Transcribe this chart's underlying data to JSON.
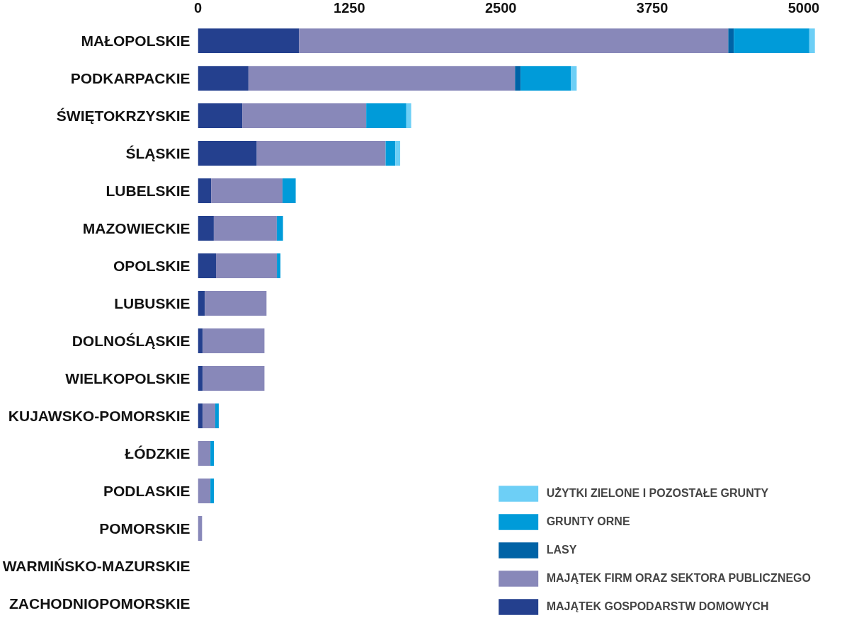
{
  "chart_data": {
    "type": "bar",
    "orientation": "horizontal",
    "stacked": true,
    "categories": [
      "MAŁOPOLSKIE",
      "PODKARPACKIE",
      "ŚWIĘTOKRZYSKIE",
      "ŚLĄSKIE",
      "LUBELSKIE",
      "MAZOWIECKIE",
      "OPOLSKIE",
      "LUBUSKIE",
      "DOLNOŚLĄSKIE",
      "WIELKOPOLSKIE",
      "KUJAWSKO-POMORSKIE",
      "ŁÓDZKIE",
      "PODLASKIE",
      "POMORSKIE",
      "WARMIŃSKO-MAZURSKIE",
      "ZACHODNIOPOMORSKIE"
    ],
    "series": [
      {
        "name": "MAJĄTEK GOSPODARSTW DOMOWYCH",
        "color": "#24408e",
        "values": [
          834,
          417,
          366,
          486,
          109,
          131,
          149,
          57,
          40,
          40,
          40,
          0,
          0,
          0,
          0,
          0
        ]
      },
      {
        "name": "MAJĄTEK FIRM ORAZ SEKTORA PUBLICZNEGO",
        "color": "#8888b9",
        "values": [
          3543,
          2200,
          1023,
          1063,
          589,
          520,
          503,
          509,
          509,
          509,
          103,
          103,
          103,
          34,
          0,
          0
        ]
      },
      {
        "name": "LASY",
        "color": "#0063a6",
        "values": [
          46,
          46,
          0,
          0,
          0,
          0,
          0,
          0,
          0,
          0,
          0,
          0,
          0,
          0,
          0,
          0
        ]
      },
      {
        "name": "GRUNTY ORNE",
        "color": "#009bd9",
        "values": [
          623,
          417,
          331,
          80,
          109,
          51,
          29,
          0,
          0,
          0,
          29,
          29,
          29,
          0,
          0,
          0
        ]
      },
      {
        "name": "UŻYTKI ZIELONE I POZOSTAŁE GRUNTY",
        "color": "#6dcff6",
        "values": [
          46,
          46,
          40,
          40,
          0,
          0,
          0,
          0,
          0,
          0,
          0,
          0,
          0,
          0,
          0,
          0
        ]
      }
    ],
    "xlim": [
      0,
      5120
    ],
    "xticks": [
      0,
      1250,
      2500,
      3750,
      5000
    ],
    "grid": false,
    "legend": "bottom right"
  }
}
